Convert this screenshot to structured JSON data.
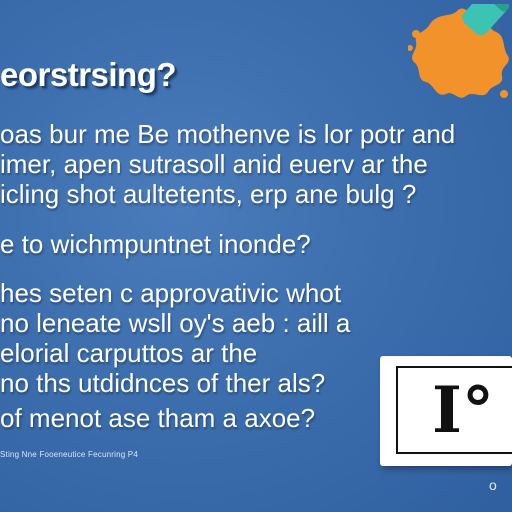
{
  "slide": {
    "title": "eorstrsing?",
    "paragraph_1": [
      "oas bur me Be mothenve is lor potr and",
      "imer, apen sutrasoll anid euerv ar the",
      "icling shot aultetents, erp ane bulg ?"
    ],
    "paragraph_2": [
      "e to wichmpuntnet inonde?"
    ],
    "paragraph_3": [
      "hes seten c approvativic whot",
      "no leneate wsll oy's aeb : aill a",
      "elorial carputtos ar the",
      "no ths utdidnces of ther als?"
    ],
    "paragraph_4": [
      "of menot ase tham a axoe?"
    ],
    "card_glyph": "I°",
    "footer_text": "Sting Nne Fooeneutice Fecunring P4",
    "footer_mark": "o"
  },
  "colors": {
    "background": "#3a6aa8",
    "text": "#ffffff",
    "splash": "#f2922a",
    "marker": "#3cc3b4"
  },
  "icons": {
    "splash": "paint-splash-icon",
    "marker": "marker-icon"
  }
}
